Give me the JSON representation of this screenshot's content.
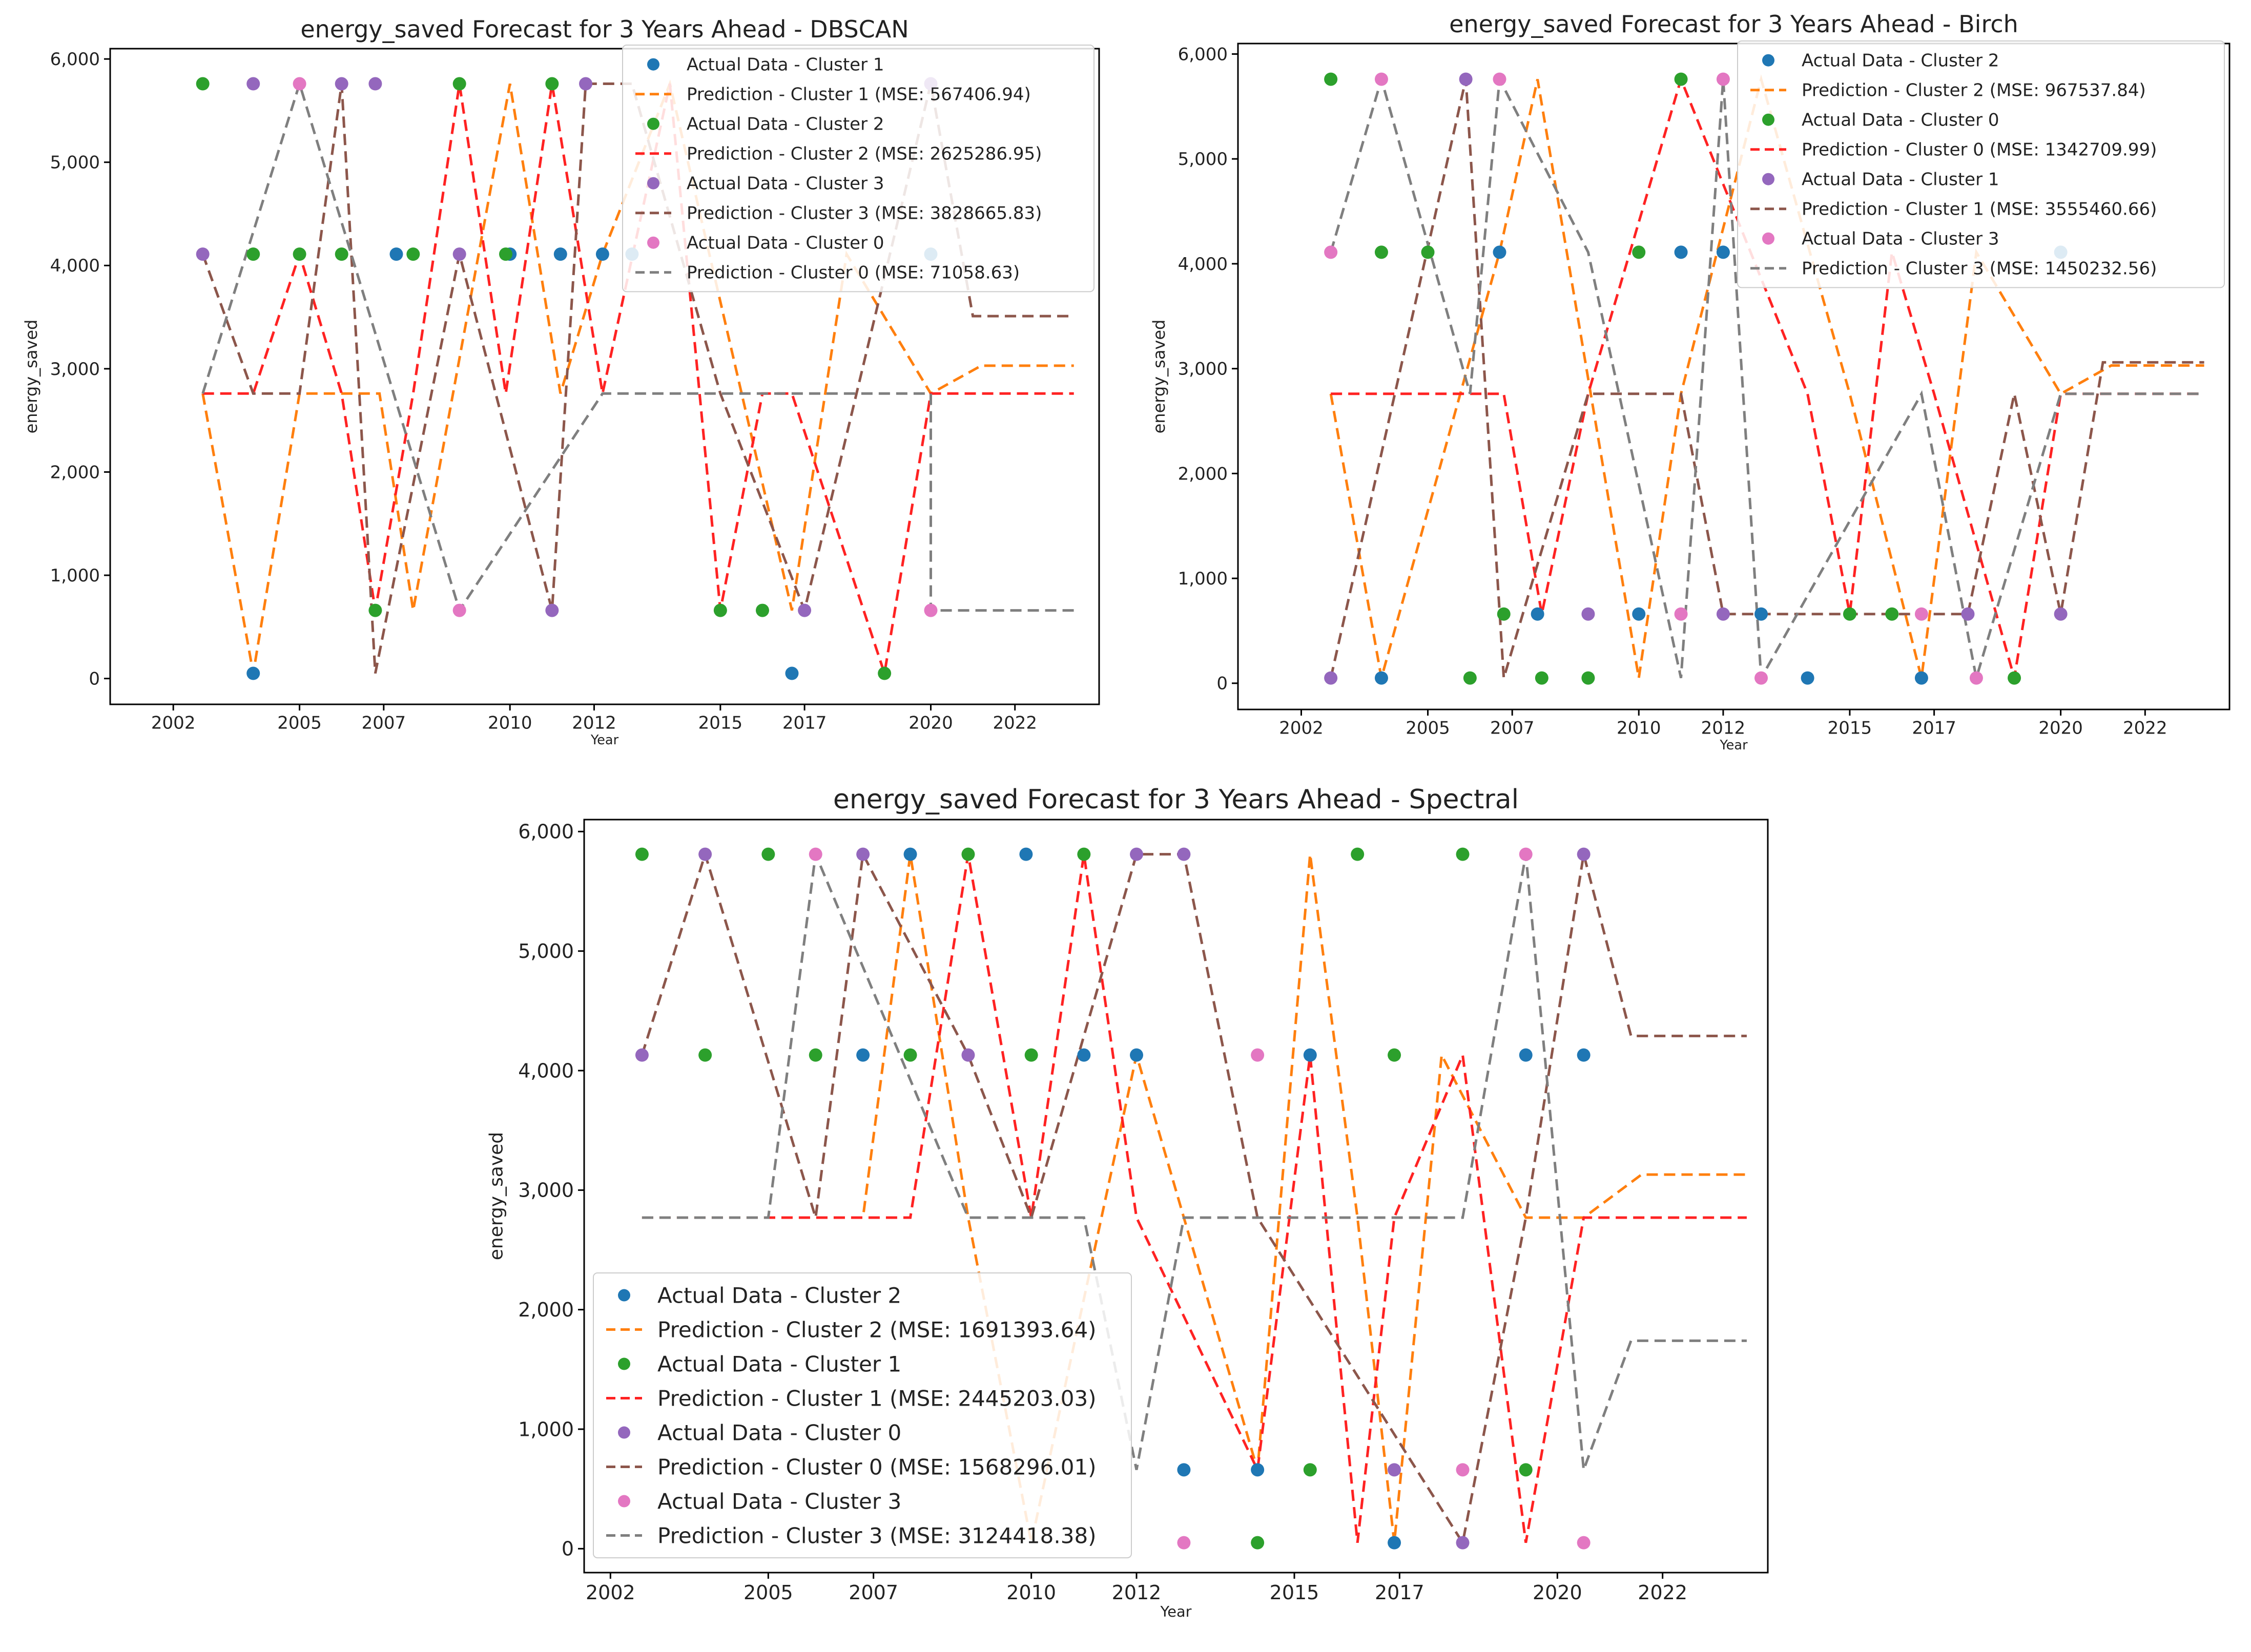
{
  "chart_data": [
    {
      "type": "line",
      "title": "energy_saved Forecast for 3 Years Ahead - DBSCAN",
      "xlabel": "Year",
      "ylabel": "energy_saved",
      "xlim": [
        2000.5,
        2024.0
      ],
      "ylim": [
        -250,
        6100
      ],
      "xticks": [
        2002,
        2005,
        2007,
        2010,
        2012,
        2015,
        2017,
        2020,
        2022
      ],
      "xtick_labels": [
        "2002",
        "2005",
        "2007",
        "2010",
        "2012",
        "2015",
        "2017",
        "2020",
        "2022"
      ],
      "yticks": [
        0,
        1000,
        2000,
        3000,
        4000,
        5000,
        6000
      ],
      "ytick_labels": [
        "0",
        "1,000",
        "2,000",
        "3,000",
        "4,000",
        "5,000",
        "6,000"
      ],
      "legend_position": "top-right",
      "series": [
        {
          "name": "Actual Data - Cluster 1",
          "kind": "points",
          "color": "#1f77b4",
          "x": [
            2003.9,
            2007.3,
            2010.0,
            2011.2,
            2012.2,
            2012.9,
            2016.7,
            2020.0
          ],
          "y": [
            50,
            4110,
            4110,
            4110,
            4110,
            4110,
            50,
            4110
          ]
        },
        {
          "name": "Prediction - Cluster 1 (MSE: 567406.94)",
          "kind": "line",
          "color": "#ff7f0e",
          "x": [
            2002.7,
            2003.9,
            2005.0,
            2006.9,
            2007.7,
            2010.0,
            2011.2,
            2012.2,
            2013.8,
            2016.7,
            2018.0,
            2020.0,
            2021.2,
            2023.4
          ],
          "y": [
            2760,
            50,
            2760,
            2760,
            660,
            5760,
            2760,
            4110,
            5760,
            660,
            4110,
            2760,
            3030,
            3030
          ]
        },
        {
          "name": "Actual Data - Cluster 2",
          "kind": "points",
          "color": "#2ca02c",
          "x": [
            2002.7,
            2003.9,
            2005.0,
            2006.0,
            2006.8,
            2007.7,
            2008.8,
            2009.9,
            2011.0,
            2015.0,
            2016.0,
            2018.9
          ],
          "y": [
            5760,
            4110,
            4110,
            4110,
            660,
            4110,
            5760,
            4110,
            5760,
            660,
            660,
            50
          ]
        },
        {
          "name": "Prediction - Cluster 2 (MSE: 2625286.95)",
          "kind": "line",
          "color": "#ff2222",
          "x": [
            2002.7,
            2003.9,
            2005.0,
            2006.0,
            2006.8,
            2007.7,
            2008.8,
            2009.9,
            2011.0,
            2012.2,
            2013.8,
            2015.0,
            2016.0,
            2016.7,
            2018.9,
            2020.0,
            2023.4
          ],
          "y": [
            2760,
            2760,
            4110,
            2760,
            660,
            2760,
            5760,
            2760,
            5760,
            2760,
            5760,
            660,
            2760,
            2760,
            50,
            2760,
            2760
          ]
        },
        {
          "name": "Actual Data - Cluster 3",
          "kind": "points",
          "color": "#9467bd",
          "x": [
            2002.7,
            2003.9,
            2006.0,
            2006.8,
            2008.8,
            2011.0,
            2011.8,
            2017.0,
            2020.0
          ],
          "y": [
            4110,
            5760,
            5760,
            5760,
            4110,
            660,
            5760,
            660,
            5760
          ]
        },
        {
          "name": "Prediction - Cluster 3 (MSE: 3828665.83)",
          "kind": "line",
          "color": "#8c564b",
          "x": [
            2002.7,
            2003.9,
            2005.0,
            2006.0,
            2006.8,
            2008.8,
            2011.0,
            2011.8,
            2012.9,
            2015.0,
            2017.0,
            2020.0,
            2021.0,
            2023.4
          ],
          "y": [
            4110,
            2760,
            2760,
            5760,
            50,
            4110,
            660,
            5760,
            5760,
            2760,
            660,
            5760,
            3510,
            3510
          ]
        },
        {
          "name": "Actual Data - Cluster 0",
          "kind": "points",
          "color": "#e377c2",
          "x": [
            2005.0,
            2008.8,
            2020.0
          ],
          "y": [
            5760,
            660,
            660
          ]
        },
        {
          "name": "Prediction - Cluster 0 (MSE: 71058.63)",
          "kind": "line",
          "color": "#7f7f7f",
          "x": [
            2002.7,
            2005.0,
            2008.8,
            2012.2,
            2020.0,
            2020.0,
            2023.4
          ],
          "y": [
            2760,
            5760,
            660,
            2760,
            2760,
            660,
            660
          ]
        }
      ]
    },
    {
      "type": "line",
      "title": "energy_saved Forecast for 3 Years Ahead - Birch",
      "xlabel": "Year",
      "ylabel": "energy_saved",
      "xlim": [
        2000.5,
        2024.0
      ],
      "ylim": [
        -250,
        6100
      ],
      "xticks": [
        2002,
        2005,
        2007,
        2010,
        2012,
        2015,
        2017,
        2020,
        2022
      ],
      "xtick_labels": [
        "2002",
        "2005",
        "2007",
        "2010",
        "2012",
        "2015",
        "2017",
        "2020",
        "2022"
      ],
      "yticks": [
        0,
        1000,
        2000,
        3000,
        4000,
        5000,
        6000
      ],
      "ytick_labels": [
        "0",
        "1,000",
        "2,000",
        "3,000",
        "4,000",
        "5,000",
        "6,000"
      ],
      "legend_position": "top-right",
      "series": [
        {
          "name": "Actual Data - Cluster 2",
          "kind": "points",
          "color": "#1f77b4",
          "x": [
            2003.9,
            2006.7,
            2007.6,
            2010.0,
            2011.0,
            2012.0,
            2012.9,
            2014.0,
            2016.7,
            2020.0
          ],
          "y": [
            50,
            4110,
            660,
            660,
            4110,
            4110,
            660,
            50,
            50,
            4110
          ]
        },
        {
          "name": "Prediction - Cluster 2 (MSE: 967537.84)",
          "kind": "line",
          "color": "#ff7f0e",
          "x": [
            2002.7,
            2003.9,
            2006.7,
            2007.6,
            2010.0,
            2011.0,
            2012.9,
            2015.0,
            2016.7,
            2018.0,
            2020.0,
            2021.2,
            2023.4
          ],
          "y": [
            2760,
            50,
            4110,
            5760,
            50,
            2760,
            5760,
            2760,
            50,
            4110,
            2760,
            3030,
            3030
          ]
        },
        {
          "name": "Actual Data - Cluster 0",
          "kind": "points",
          "color": "#2ca02c",
          "x": [
            2002.7,
            2003.9,
            2005.0,
            2006.0,
            2006.8,
            2007.7,
            2008.8,
            2010.0,
            2011.0,
            2015.0,
            2016.0,
            2018.9
          ],
          "y": [
            5760,
            4110,
            4110,
            50,
            660,
            50,
            50,
            4110,
            5760,
            660,
            660,
            50
          ]
        },
        {
          "name": "Prediction - Cluster 0 (MSE: 1342709.99)",
          "kind": "line",
          "color": "#ff2222",
          "x": [
            2002.7,
            2003.9,
            2005.0,
            2006.8,
            2007.7,
            2008.8,
            2011.0,
            2014.0,
            2015.0,
            2016.0,
            2017.0,
            2018.9,
            2020.0,
            2023.4
          ],
          "y": [
            2760,
            2760,
            2760,
            2760,
            660,
            2760,
            5760,
            2760,
            660,
            4110,
            2760,
            50,
            2760,
            2760
          ]
        },
        {
          "name": "Actual Data - Cluster 1",
          "kind": "points",
          "color": "#9467bd",
          "x": [
            2002.7,
            2005.9,
            2008.8,
            2012.0,
            2017.8,
            2020.0
          ],
          "y": [
            50,
            5760,
            660,
            660,
            660,
            660
          ]
        },
        {
          "name": "Prediction - Cluster 1 (MSE: 3555460.66)",
          "kind": "line",
          "color": "#8c564b",
          "x": [
            2002.7,
            2005.9,
            2006.8,
            2008.8,
            2011.0,
            2012.0,
            2017.8,
            2018.9,
            2020.0,
            2021.0,
            2023.4
          ],
          "y": [
            50,
            5760,
            50,
            2760,
            2760,
            660,
            660,
            2760,
            660,
            3060,
            3060
          ]
        },
        {
          "name": "Actual Data - Cluster 3",
          "kind": "points",
          "color": "#e377c2",
          "x": [
            2002.7,
            2003.9,
            2006.7,
            2011.0,
            2012.0,
            2012.9,
            2016.7,
            2018.0
          ],
          "y": [
            4110,
            5760,
            5760,
            660,
            5760,
            50,
            660,
            50
          ]
        },
        {
          "name": "Prediction - Cluster 3 (MSE: 1450232.56)",
          "kind": "line",
          "color": "#7f7f7f",
          "x": [
            2002.7,
            2003.9,
            2006.0,
            2006.7,
            2008.8,
            2011.0,
            2012.0,
            2012.9,
            2016.7,
            2018.0,
            2020.0,
            2023.4
          ],
          "y": [
            4110,
            5760,
            2760,
            5760,
            4110,
            50,
            5760,
            50,
            2760,
            50,
            2760,
            2760
          ]
        }
      ]
    },
    {
      "type": "line",
      "title": "energy_saved Forecast for 3 Years Ahead - Spectral",
      "xlabel": "Year",
      "ylabel": "energy_saved",
      "xlim": [
        2001.5,
        2024.0
      ],
      "ylim": [
        -200,
        6100
      ],
      "xticks": [
        2002,
        2005,
        2007,
        2010,
        2012,
        2015,
        2017,
        2020,
        2022
      ],
      "xtick_labels": [
        "2002",
        "2005",
        "2007",
        "2010",
        "2012",
        "2015",
        "2017",
        "2020",
        "2022"
      ],
      "yticks": [
        0,
        1000,
        2000,
        3000,
        4000,
        5000,
        6000
      ],
      "ytick_labels": [
        "0",
        "1,000",
        "2,000",
        "3,000",
        "4,000",
        "5,000",
        "6,000"
      ],
      "legend_position": "lower-left",
      "series": [
        {
          "name": "Actual Data - Cluster 2",
          "kind": "points",
          "color": "#1f77b4",
          "x": [
            2006.8,
            2007.7,
            2009.9,
            2011.0,
            2012.0,
            2012.9,
            2014.3,
            2015.3,
            2016.9,
            2019.4,
            2020.5
          ],
          "y": [
            4130,
            5810,
            5810,
            4130,
            4130,
            660,
            660,
            4130,
            50,
            4130,
            4130
          ]
        },
        {
          "name": "Prediction - Cluster 2 (MSE: 1691393.64)",
          "kind": "line",
          "color": "#ff7f0e",
          "x": [
            2002.6,
            2003.8,
            2005.0,
            2006.8,
            2007.7,
            2008.8,
            2010.0,
            2012.0,
            2012.9,
            2014.3,
            2015.3,
            2016.2,
            2016.9,
            2017.8,
            2019.4,
            2020.5,
            2021.6,
            2023.6
          ],
          "y": [
            2770,
            2770,
            2770,
            2770,
            5810,
            2770,
            50,
            4130,
            2770,
            660,
            5810,
            2770,
            50,
            4130,
            2770,
            2770,
            3130,
            3130
          ]
        },
        {
          "name": "Actual Data - Cluster 1",
          "kind": "points",
          "color": "#2ca02c",
          "x": [
            2002.6,
            2003.8,
            2005.0,
            2005.9,
            2007.7,
            2008.8,
            2010.0,
            2011.0,
            2014.3,
            2015.3,
            2016.2,
            2016.9,
            2018.2,
            2019.4
          ],
          "y": [
            5810,
            4130,
            5810,
            4130,
            4130,
            5810,
            4130,
            5810,
            50,
            660,
            5810,
            4130,
            5810,
            660
          ]
        },
        {
          "name": "Prediction - Cluster 1 (MSE: 2445203.03)",
          "kind": "line",
          "color": "#ff2222",
          "x": [
            2002.6,
            2003.8,
            2005.0,
            2005.9,
            2007.7,
            2008.8,
            2010.0,
            2011.0,
            2012.0,
            2014.3,
            2015.3,
            2016.2,
            2016.9,
            2018.2,
            2019.4,
            2020.5,
            2023.6
          ],
          "y": [
            2770,
            2770,
            2770,
            2770,
            2770,
            5810,
            2770,
            5810,
            2770,
            660,
            4130,
            50,
            2770,
            4130,
            50,
            2770,
            2770
          ]
        },
        {
          "name": "Actual Data - Cluster 0",
          "kind": "points",
          "color": "#9467bd",
          "x": [
            2002.6,
            2003.8,
            2006.8,
            2008.8,
            2012.0,
            2012.9,
            2016.9,
            2018.2,
            2020.5
          ],
          "y": [
            4130,
            5810,
            5810,
            4130,
            5810,
            5810,
            660,
            50,
            5810
          ]
        },
        {
          "name": "Prediction - Cluster 0 (MSE: 1568296.01)",
          "kind": "line",
          "color": "#8c564b",
          "x": [
            2002.6,
            2003.8,
            2005.9,
            2006.8,
            2008.8,
            2010.0,
            2012.0,
            2012.9,
            2014.3,
            2018.2,
            2019.4,
            2020.5,
            2021.4,
            2023.6
          ],
          "y": [
            4130,
            5810,
            2770,
            5810,
            4130,
            2770,
            5810,
            5810,
            2770,
            50,
            2770,
            5810,
            4290,
            4290
          ]
        },
        {
          "name": "Actual Data - Cluster 3",
          "kind": "points",
          "color": "#e377c2",
          "x": [
            2005.9,
            2012.9,
            2014.3,
            2018.2,
            2019.4,
            2020.5
          ],
          "y": [
            5810,
            50,
            4130,
            660,
            5810,
            50
          ]
        },
        {
          "name": "Prediction - Cluster 3 (MSE: 3124418.38)",
          "kind": "line",
          "color": "#7f7f7f",
          "x": [
            2002.6,
            2005.0,
            2005.9,
            2008.8,
            2011.0,
            2012.0,
            2012.9,
            2016.9,
            2018.2,
            2019.4,
            2020.5,
            2021.4,
            2023.6
          ],
          "y": [
            2770,
            2770,
            5810,
            2770,
            2770,
            660,
            2770,
            2770,
            2770,
            5810,
            660,
            1740,
            1740
          ]
        }
      ]
    }
  ]
}
